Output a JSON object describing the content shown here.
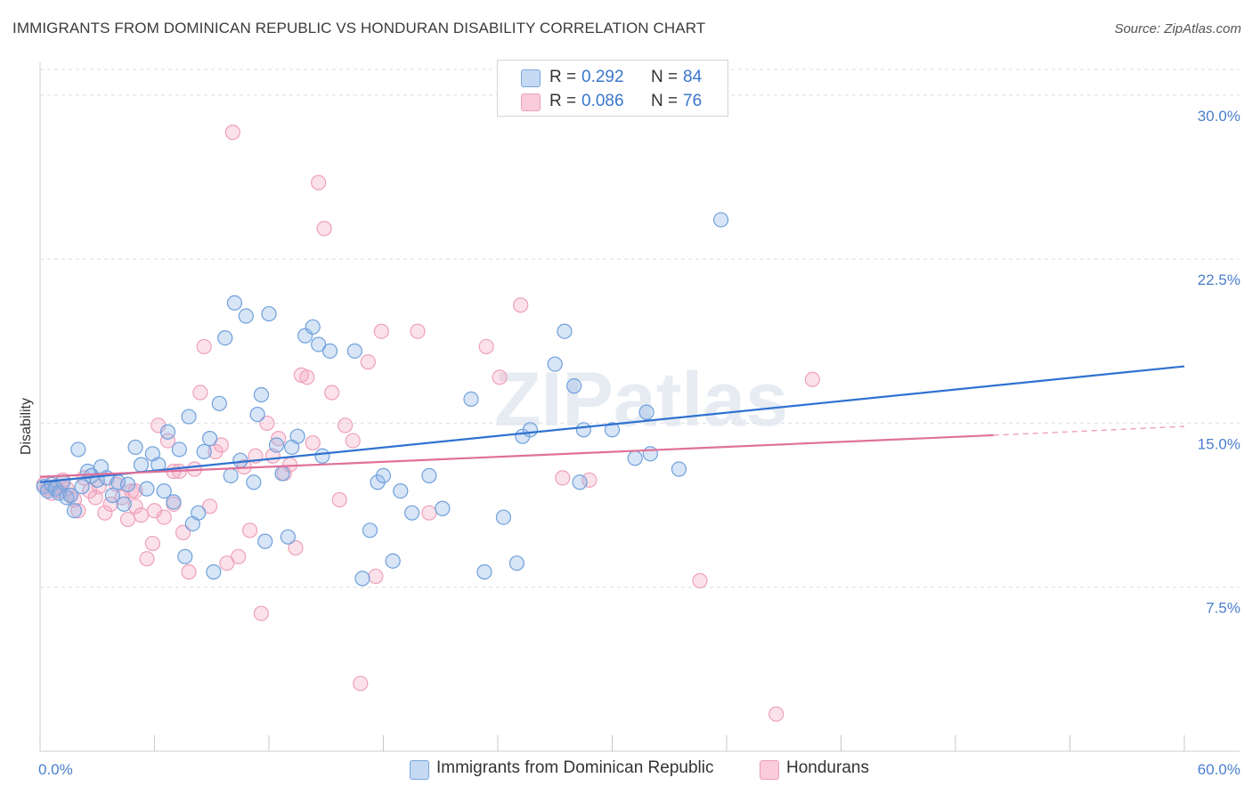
{
  "header": {
    "title": "IMMIGRANTS FROM DOMINICAN REPUBLIC VS HONDURAN DISABILITY CORRELATION CHART",
    "source": "Source: ZipAtlas.com"
  },
  "legend": {
    "r_label": "R =",
    "n_label": "N =",
    "rows": [
      {
        "r": "0.292",
        "n": "84"
      },
      {
        "r": "0.086",
        "n": "76"
      }
    ]
  },
  "watermark": "ZIPatlas",
  "chart_data": {
    "type": "scatter",
    "ylabel": "Disability",
    "xlim": [
      0,
      60
    ],
    "ylim": [
      0,
      31.5
    ],
    "x_tick_labels": [
      "0.0%",
      "60.0%"
    ],
    "y_ticks": [
      7.5,
      15.0,
      22.5,
      30.0
    ],
    "y_tick_labels": [
      "7.5%",
      "15.0%",
      "22.5%",
      "30.0%"
    ],
    "grid": true,
    "legend_position": "top-center",
    "colors": {
      "blue": "#6fa0dc",
      "pink": "#f0a0bc",
      "blue_line": "#2f72d0",
      "pink_line": "#e07098"
    },
    "series": [
      {
        "name": "Immigrants from Dominican Republic",
        "color": "#6fa0dc",
        "trend": {
          "x": [
            0,
            60
          ],
          "y": [
            12.3,
            17.6
          ]
        },
        "points": [
          [
            0.2,
            12.1
          ],
          [
            0.4,
            11.9
          ],
          [
            0.6,
            12.2
          ],
          [
            0.8,
            12.0
          ],
          [
            1.0,
            11.8
          ],
          [
            1.2,
            12.3
          ],
          [
            1.4,
            11.6
          ],
          [
            1.6,
            11.7
          ],
          [
            1.8,
            11.0
          ],
          [
            2.0,
            13.8
          ],
          [
            2.2,
            12.1
          ],
          [
            2.5,
            12.8
          ],
          [
            2.7,
            12.6
          ],
          [
            3.0,
            12.4
          ],
          [
            3.2,
            13.0
          ],
          [
            3.5,
            12.5
          ],
          [
            3.8,
            11.7
          ],
          [
            4.1,
            12.3
          ],
          [
            4.4,
            11.3
          ],
          [
            4.6,
            12.2
          ],
          [
            5.0,
            13.9
          ],
          [
            5.3,
            13.1
          ],
          [
            5.6,
            12.0
          ],
          [
            5.9,
            13.6
          ],
          [
            6.2,
            13.1
          ],
          [
            6.5,
            11.9
          ],
          [
            6.7,
            14.6
          ],
          [
            7.0,
            11.4
          ],
          [
            7.3,
            13.8
          ],
          [
            7.6,
            8.9
          ],
          [
            7.8,
            15.3
          ],
          [
            8.0,
            10.4
          ],
          [
            8.3,
            10.9
          ],
          [
            8.6,
            13.7
          ],
          [
            8.9,
            14.3
          ],
          [
            9.1,
            8.2
          ],
          [
            9.4,
            15.9
          ],
          [
            9.7,
            18.9
          ],
          [
            10.0,
            12.6
          ],
          [
            10.2,
            20.5
          ],
          [
            10.5,
            13.3
          ],
          [
            10.8,
            19.9
          ],
          [
            11.2,
            12.3
          ],
          [
            11.4,
            15.4
          ],
          [
            11.6,
            16.3
          ],
          [
            11.8,
            9.6
          ],
          [
            12.0,
            20.0
          ],
          [
            12.4,
            14.0
          ],
          [
            12.7,
            12.7
          ],
          [
            13.0,
            9.8
          ],
          [
            13.2,
            13.9
          ],
          [
            13.5,
            14.4
          ],
          [
            13.9,
            19.0
          ],
          [
            14.3,
            19.4
          ],
          [
            14.6,
            18.6
          ],
          [
            14.8,
            13.5
          ],
          [
            15.2,
            18.3
          ],
          [
            16.5,
            18.3
          ],
          [
            16.9,
            7.9
          ],
          [
            17.3,
            10.1
          ],
          [
            17.7,
            12.3
          ],
          [
            18.0,
            12.6
          ],
          [
            18.5,
            8.7
          ],
          [
            18.9,
            11.9
          ],
          [
            19.5,
            10.9
          ],
          [
            20.4,
            12.6
          ],
          [
            21.1,
            11.1
          ],
          [
            22.6,
            16.1
          ],
          [
            23.3,
            8.2
          ],
          [
            24.3,
            10.7
          ],
          [
            25.0,
            8.6
          ],
          [
            25.3,
            14.4
          ],
          [
            25.7,
            14.7
          ],
          [
            27.0,
            17.7
          ],
          [
            27.5,
            19.2
          ],
          [
            28.0,
            16.7
          ],
          [
            28.3,
            12.3
          ],
          [
            28.5,
            14.7
          ],
          [
            30.0,
            14.7
          ],
          [
            31.2,
            13.4
          ],
          [
            31.8,
            15.5
          ],
          [
            32.0,
            13.6
          ],
          [
            33.5,
            12.9
          ],
          [
            35.7,
            24.3
          ]
        ]
      },
      {
        "name": "Hondurans",
        "color": "#f0a0bc",
        "trend": {
          "x": [
            0,
            50
          ],
          "y": [
            12.55,
            14.45
          ]
        },
        "trend_dashed": {
          "x": [
            50,
            60
          ],
          "y": [
            14.45,
            14.85
          ]
        },
        "points": [
          [
            0.2,
            12.2
          ],
          [
            0.4,
            12.0
          ],
          [
            0.6,
            11.8
          ],
          [
            0.8,
            12.1
          ],
          [
            1.0,
            11.9
          ],
          [
            1.2,
            12.4
          ],
          [
            1.4,
            12.0
          ],
          [
            1.6,
            11.7
          ],
          [
            1.8,
            11.5
          ],
          [
            2.0,
            11.0
          ],
          [
            2.3,
            12.5
          ],
          [
            2.6,
            11.9
          ],
          [
            2.9,
            11.6
          ],
          [
            3.1,
            12.1
          ],
          [
            3.4,
            10.9
          ],
          [
            3.7,
            11.3
          ],
          [
            4.0,
            12.2
          ],
          [
            4.3,
            11.6
          ],
          [
            4.6,
            10.6
          ],
          [
            4.8,
            11.9
          ],
          [
            5.0,
            11.2
          ],
          [
            5.3,
            10.8
          ],
          [
            5.6,
            8.8
          ],
          [
            5.9,
            9.5
          ],
          [
            6.2,
            14.9
          ],
          [
            6.5,
            10.7
          ],
          [
            6.7,
            14.2
          ],
          [
            7.0,
            11.3
          ],
          [
            7.3,
            12.8
          ],
          [
            7.5,
            10.0
          ],
          [
            7.8,
            8.2
          ],
          [
            8.1,
            12.9
          ],
          [
            8.4,
            16.4
          ],
          [
            8.6,
            18.5
          ],
          [
            8.9,
            11.2
          ],
          [
            9.2,
            13.7
          ],
          [
            9.5,
            14.0
          ],
          [
            9.8,
            8.6
          ],
          [
            10.1,
            28.3
          ],
          [
            10.4,
            8.9
          ],
          [
            10.7,
            13.0
          ],
          [
            11.0,
            10.1
          ],
          [
            11.3,
            13.5
          ],
          [
            11.6,
            6.3
          ],
          [
            11.9,
            15.0
          ],
          [
            12.2,
            13.5
          ],
          [
            12.5,
            14.3
          ],
          [
            12.8,
            12.7
          ],
          [
            13.1,
            13.1
          ],
          [
            13.4,
            9.3
          ],
          [
            13.7,
            17.2
          ],
          [
            14.0,
            17.1
          ],
          [
            14.3,
            14.1
          ],
          [
            14.6,
            26.0
          ],
          [
            14.9,
            23.9
          ],
          [
            15.3,
            16.4
          ],
          [
            15.7,
            11.5
          ],
          [
            16.0,
            14.9
          ],
          [
            16.4,
            14.2
          ],
          [
            16.8,
            3.1
          ],
          [
            17.2,
            17.8
          ],
          [
            17.6,
            8.0
          ],
          [
            17.9,
            19.2
          ],
          [
            19.8,
            19.2
          ],
          [
            20.4,
            10.9
          ],
          [
            23.4,
            18.5
          ],
          [
            24.1,
            17.1
          ],
          [
            25.2,
            20.4
          ],
          [
            27.4,
            12.5
          ],
          [
            28.8,
            12.4
          ],
          [
            34.6,
            7.8
          ],
          [
            38.6,
            1.7
          ],
          [
            40.5,
            17.0
          ],
          [
            7.0,
            12.8
          ],
          [
            6.0,
            11.0
          ],
          [
            5.0,
            11.9
          ]
        ]
      }
    ]
  },
  "bottom_legend": [
    {
      "label": "Immigrants from Dominican Republic"
    },
    {
      "label": "Hondurans"
    }
  ]
}
